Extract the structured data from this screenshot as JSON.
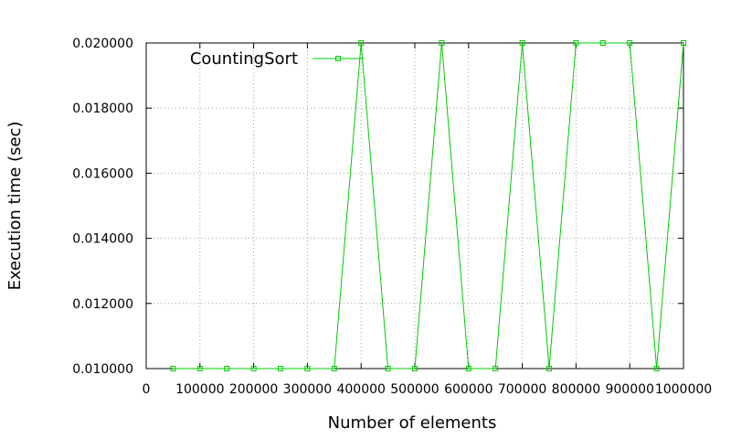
{
  "chart_data": {
    "type": "line",
    "xlabel": "Number of elements",
    "ylabel": "Execution time (sec)",
    "xlim": [
      0,
      1000000
    ],
    "ylim": [
      0.01,
      0.02
    ],
    "x_ticks": [
      0,
      100000,
      200000,
      300000,
      400000,
      500000,
      600000,
      700000,
      800000,
      900000,
      1000000
    ],
    "x_tick_labels": [
      "0",
      "100000",
      "200000",
      "300000",
      "400000",
      "500000",
      "600000",
      "700000",
      "800000",
      "900000",
      "1000000"
    ],
    "y_ticks": [
      0.01,
      0.012,
      0.014,
      0.016,
      0.018,
      0.02
    ],
    "y_tick_labels": [
      "0.010000",
      "0.012000",
      "0.014000",
      "0.016000",
      "0.018000",
      "0.020000"
    ],
    "grid": true,
    "legend_position": "top-left",
    "series": [
      {
        "name": "CountingSort",
        "color": "#00cc00",
        "marker": "square",
        "x": [
          50000,
          100000,
          150000,
          200000,
          250000,
          300000,
          350000,
          400000,
          450000,
          500000,
          550000,
          600000,
          650000,
          700000,
          750000,
          800000,
          850000,
          900000,
          950000,
          1000000
        ],
        "y": [
          0.01,
          0.01,
          0.01,
          0.01,
          0.01,
          0.01,
          0.01,
          0.02,
          0.01,
          0.01,
          0.02,
          0.01,
          0.01,
          0.02,
          0.01,
          0.02,
          0.02,
          0.02,
          0.01,
          0.02
        ]
      }
    ]
  }
}
